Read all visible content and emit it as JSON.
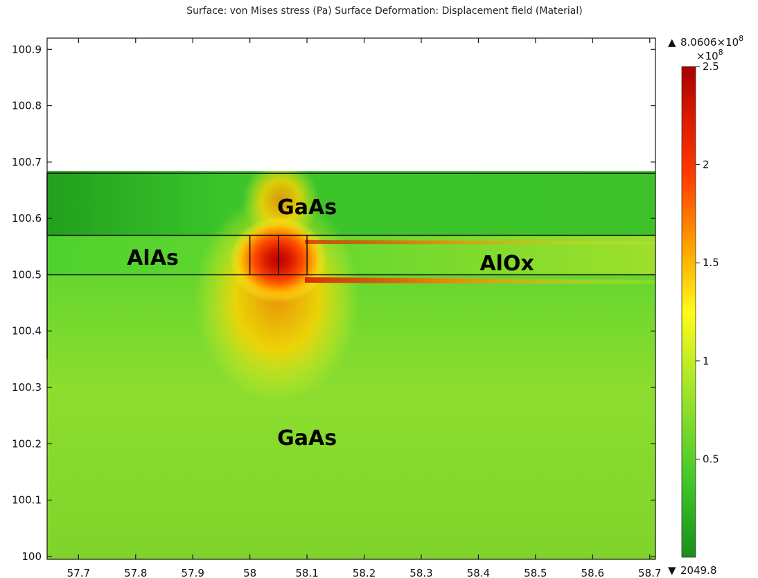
{
  "title": "Surface: von Mises stress (Pa)   Surface Deformation: Displacement field (Material)",
  "chart_data": {
    "type": "heatmap",
    "title": "Surface: von Mises stress (Pa)   Surface Deformation: Displacement field (Material)",
    "xlabel": "",
    "ylabel": "",
    "xlim": [
      57.645,
      58.71
    ],
    "ylim": [
      99.995,
      100.92
    ],
    "x_ticks": [
      "57.7",
      "57.8",
      "57.9",
      "58",
      "58.1",
      "58.2",
      "58.3",
      "58.4",
      "58.5",
      "58.6",
      "58.7"
    ],
    "y_ticks": [
      "100",
      "100.1",
      "100.2",
      "100.3",
      "100.4",
      "100.5",
      "100.6",
      "100.7",
      "100.8",
      "100.9"
    ],
    "grid": false,
    "colorbar": {
      "max_label": "8.0606×10",
      "max_exp": "8",
      "multiplier_label": "×10",
      "multiplier_exp": "8",
      "min_label": "2049.8",
      "ticks": [
        "2.5",
        "2",
        "1.5",
        "1",
        "0.5"
      ],
      "tick_values": [
        2.5,
        2.0,
        1.5,
        1.0,
        0.5
      ],
      "range": [
        0,
        2.5
      ],
      "colors": [
        "#1a8e1a",
        "#3fc62a",
        "#a6e62a",
        "#fffa1a",
        "#ffaa00",
        "#ff3a00",
        "#d81a00",
        "#a80000"
      ]
    },
    "regions": [
      {
        "label": "GaAs",
        "x": 58.1,
        "y": 100.62
      },
      {
        "label": "AlAs",
        "x": 57.83,
        "y": 100.53
      },
      {
        "label": "AlOx",
        "x": 58.45,
        "y": 100.52
      },
      {
        "label": "GaAs",
        "x": 58.1,
        "y": 100.21
      }
    ],
    "layer_boundaries_y": [
      100.68,
      100.57,
      100.5
    ],
    "cell_boundaries_x": [
      58.0,
      58.05,
      58.1
    ]
  }
}
